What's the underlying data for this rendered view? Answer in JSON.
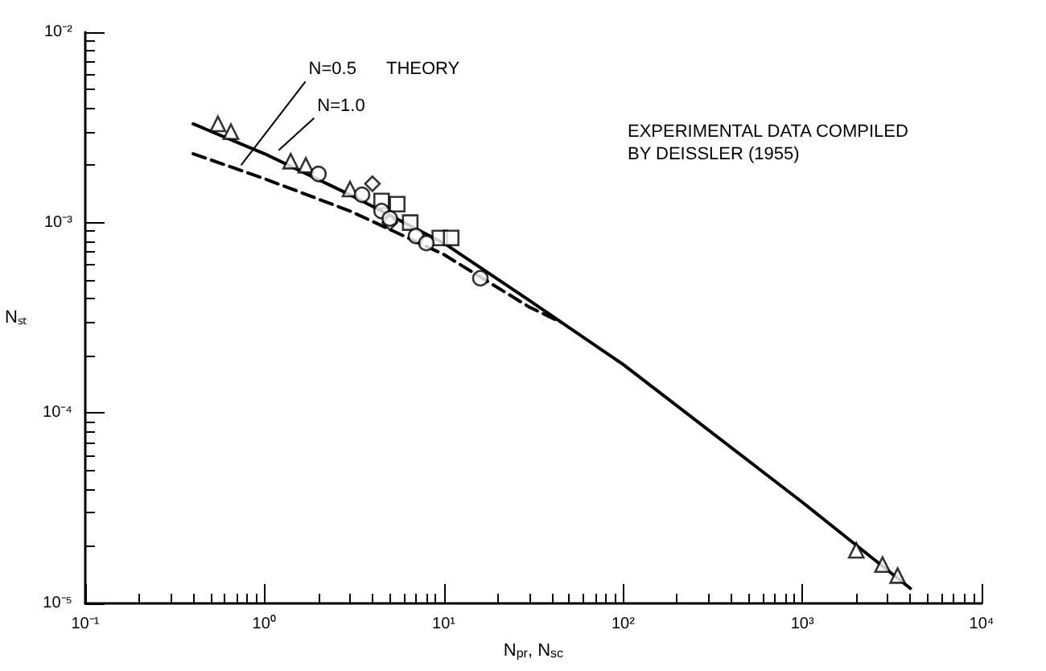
{
  "chart_data": {
    "type": "scatter",
    "xlabel": "N$_{pr}$, N$_{sc}$",
    "ylabel": "Nₛₜ",
    "log": "xy",
    "xlim": [
      0.1,
      10000
    ],
    "ylim": [
      1e-05,
      0.01
    ],
    "xticks": [
      {
        "value": 0.1,
        "label": "10⁻¹"
      },
      {
        "value": 1,
        "label": "10⁰"
      },
      {
        "value": 10,
        "label": "10¹"
      },
      {
        "value": 100,
        "label": "10²"
      },
      {
        "value": 1000,
        "label": "10³"
      },
      {
        "value": 10000,
        "label": "10⁴"
      }
    ],
    "yticks": [
      {
        "value": 1e-05,
        "label": "10⁻⁵"
      },
      {
        "value": 0.0001,
        "label": "10⁻⁴"
      },
      {
        "value": 0.001,
        "label": "10⁻³"
      },
      {
        "value": 0.01,
        "label": "10⁻²"
      }
    ],
    "series": [
      {
        "type": "line",
        "color": "#000000",
        "line_style": "solid",
        "marker": "none",
        "x": [
          0.4,
          1,
          3,
          10,
          30,
          100,
          1000,
          4000
        ],
        "values": [
          0.0033,
          0.0023,
          0.0014,
          0.00078,
          0.00039,
          0.00018,
          3.4e-05,
          1.2e-05
        ]
      },
      {
        "type": "line",
        "color": "#000000",
        "line_style": "dashed",
        "marker": "none",
        "x": [
          0.4,
          1,
          3,
          10,
          30,
          45
        ],
        "values": [
          0.0023,
          0.0017,
          0.00115,
          0.00068,
          0.00036,
          0.0003
        ]
      },
      {
        "color": "#000000",
        "marker": "triangle",
        "x": [
          0.55,
          0.65,
          1.4,
          1.7,
          3,
          2000,
          2800,
          3400
        ],
        "values": [
          0.0033,
          0.003,
          0.0021,
          0.002,
          0.0015,
          1.9e-05,
          1.6e-05,
          1.4e-05
        ]
      },
      {
        "color": "#000000",
        "marker": "diamond",
        "x": [
          4,
          5
        ],
        "values": [
          0.0016,
          0.001
        ]
      },
      {
        "color": "#000000",
        "marker": "square",
        "x": [
          4.5,
          5.5,
          6.5,
          9.5,
          11
        ],
        "values": [
          0.0013,
          0.00125,
          0.001,
          0.00083,
          0.00083
        ]
      },
      {
        "color": "#000000",
        "marker": "circle",
        "x": [
          2,
          3.5,
          4.5,
          5,
          7,
          8,
          16
        ],
        "values": [
          0.0018,
          0.0014,
          0.00115,
          0.00105,
          0.00085,
          0.00078,
          0.00051
        ]
      }
    ],
    "annotations": [
      {
        "text": "N=0.5",
        "x": 0.74,
        "y": 0.002
      },
      {
        "text": "N=1.0",
        "x": 1.2,
        "y": 0.0024
      },
      "THEORY",
      "EXPERIMENTAL DATA COMPILED\nBY DEISSLER (1955)"
    ]
  }
}
